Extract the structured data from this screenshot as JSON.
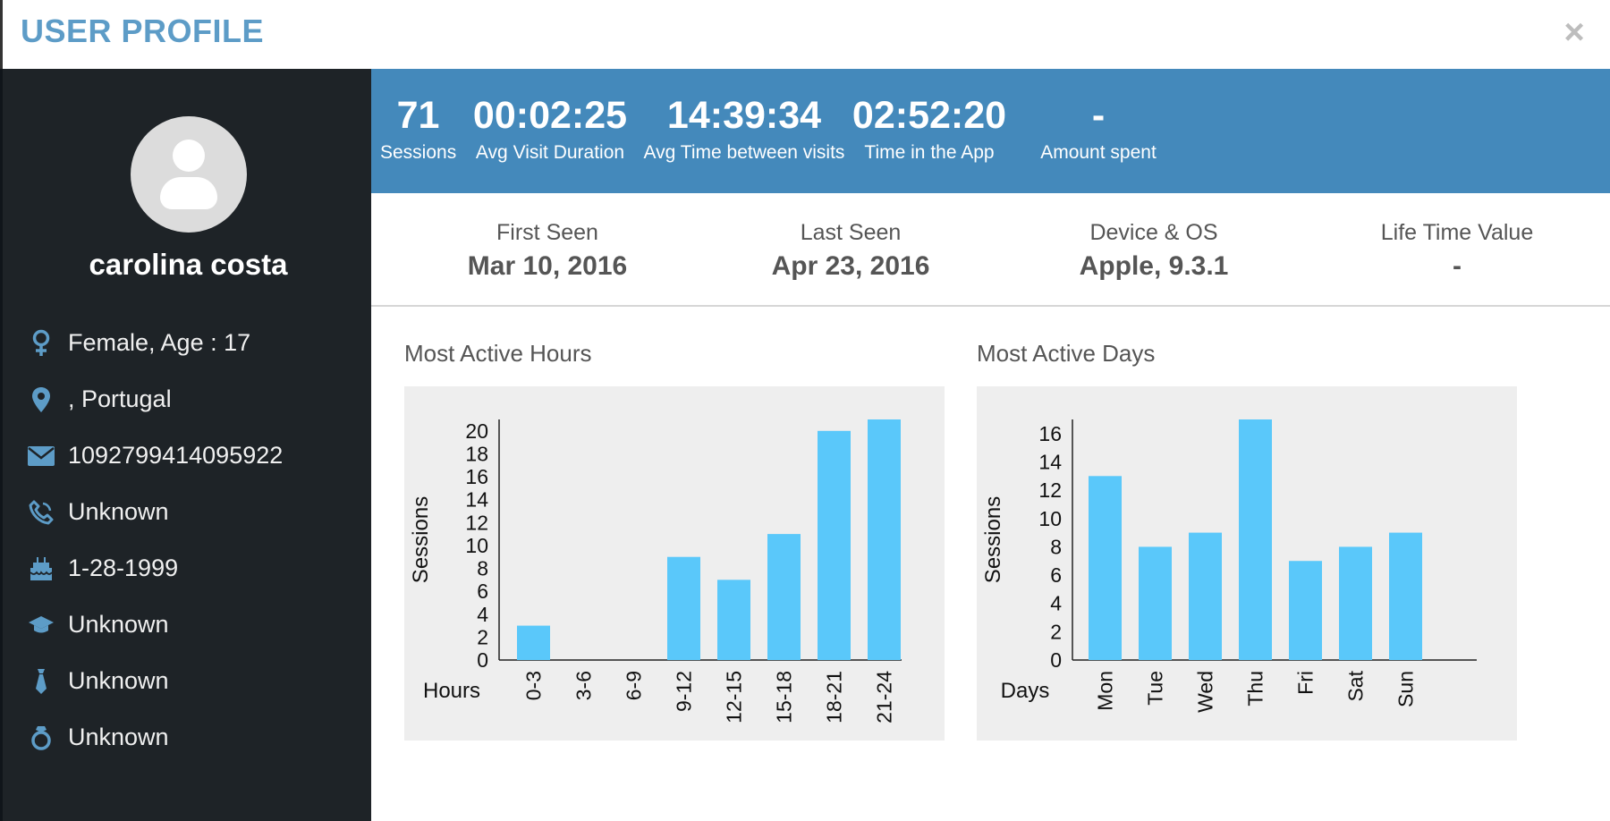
{
  "header": {
    "title": "USER PROFILE",
    "close_label": "×"
  },
  "profile": {
    "name": "carolina costa",
    "info": [
      {
        "icon": "female-icon",
        "text": "Female, Age : 17"
      },
      {
        "icon": "location-pin-icon",
        "text": ", Portugal"
      },
      {
        "icon": "envelope-icon",
        "text": "1092799414095922"
      },
      {
        "icon": "phone-icon",
        "text": "Unknown"
      },
      {
        "icon": "birthday-cake-icon",
        "text": "1-28-1999"
      },
      {
        "icon": "graduation-cap-icon",
        "text": "Unknown"
      },
      {
        "icon": "tie-icon",
        "text": "Unknown"
      },
      {
        "icon": "ring-icon",
        "text": "Unknown"
      }
    ]
  },
  "stats": [
    {
      "value": "71",
      "label": "Sessions"
    },
    {
      "value": "00:02:25",
      "label": "Avg Visit Duration"
    },
    {
      "value": "14:39:34",
      "label": "Avg Time between visits"
    },
    {
      "value": "02:52:20",
      "label": "Time in the App"
    },
    {
      "value": "-",
      "label": "Amount spent"
    }
  ],
  "meta": [
    {
      "label": "First Seen",
      "value": "Mar 10, 2016"
    },
    {
      "label": "Last Seen",
      "value": "Apr 23, 2016"
    },
    {
      "label": "Device & OS",
      "value": "Apple, 9.3.1"
    },
    {
      "label": "Life Time Value",
      "value": "-"
    }
  ],
  "colors": {
    "accent": "#4489bb",
    "bar": "#5ac8fa",
    "sidebar": "#1e2327",
    "icon": "#5d9cc7"
  },
  "chart_data": [
    {
      "type": "bar",
      "title": "Most Active Hours",
      "xlabel": "Hours",
      "ylabel": "Sessions",
      "categories": [
        "0-3",
        "3-6",
        "6-9",
        "9-12",
        "12-15",
        "15-18",
        "18-21",
        "21-24"
      ],
      "values": [
        3,
        0,
        0,
        9,
        7,
        11,
        20,
        21
      ],
      "yticks": [
        0,
        2,
        4,
        6,
        8,
        10,
        12,
        14,
        16,
        18,
        20
      ],
      "ylim": [
        0,
        21
      ],
      "grid": false
    },
    {
      "type": "bar",
      "title": "Most Active Days",
      "xlabel": "Days",
      "ylabel": "Sessions",
      "categories": [
        "Mon",
        "Tue",
        "Wed",
        "Thu",
        "Fri",
        "Sat",
        "Sun"
      ],
      "values": [
        13,
        8,
        9,
        17,
        7,
        8,
        9
      ],
      "yticks": [
        0,
        2,
        4,
        6,
        8,
        10,
        12,
        14,
        16
      ],
      "ylim": [
        0,
        17
      ],
      "grid": false
    }
  ]
}
